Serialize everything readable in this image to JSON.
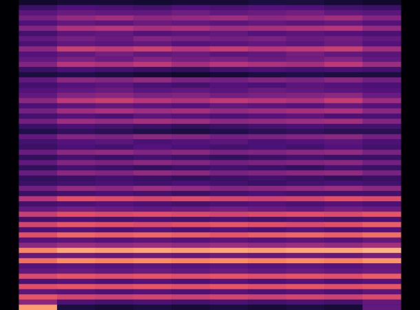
{
  "chart_data": {
    "type": "heatmap",
    "xlim": [
      0,
      10
    ],
    "ylim": [
      0,
      60
    ],
    "zlim": [
      0,
      100
    ],
    "tick_labels": false,
    "grid": false,
    "cells": [
      [
        8,
        10,
        10,
        9,
        10,
        10,
        12,
        12,
        10,
        8
      ],
      [
        20,
        25,
        24,
        22,
        25,
        24,
        26,
        25,
        22,
        20
      ],
      [
        28,
        32,
        30,
        30,
        33,
        30,
        32,
        34,
        30,
        28
      ],
      [
        35,
        42,
        45,
        40,
        42,
        44,
        40,
        42,
        45,
        38
      ],
      [
        25,
        30,
        28,
        32,
        30,
        28,
        30,
        28,
        30,
        26
      ],
      [
        38,
        48,
        50,
        46,
        48,
        44,
        46,
        48,
        50,
        42
      ],
      [
        22,
        28,
        30,
        26,
        28,
        30,
        26,
        28,
        26,
        24
      ],
      [
        30,
        35,
        32,
        38,
        36,
        34,
        36,
        32,
        34,
        30
      ],
      [
        24,
        30,
        28,
        30,
        26,
        28,
        30,
        28,
        32,
        26
      ],
      [
        40,
        55,
        52,
        56,
        50,
        54,
        50,
        52,
        55,
        45
      ],
      [
        26,
        30,
        34,
        30,
        32,
        28,
        30,
        34,
        30,
        28
      ],
      [
        30,
        36,
        32,
        38,
        34,
        36,
        32,
        34,
        38,
        30
      ],
      [
        38,
        50,
        48,
        52,
        46,
        50,
        48,
        46,
        52,
        44
      ],
      [
        20,
        24,
        22,
        20,
        18,
        22,
        24,
        22,
        24,
        22
      ],
      [
        12,
        14,
        12,
        10,
        8,
        10,
        12,
        14,
        12,
        12
      ],
      [
        30,
        40,
        38,
        42,
        36,
        34,
        38,
        36,
        40,
        34
      ],
      [
        22,
        26,
        28,
        24,
        22,
        26,
        24,
        28,
        26,
        24
      ],
      [
        26,
        30,
        32,
        28,
        30,
        28,
        32,
        30,
        28,
        26
      ],
      [
        30,
        38,
        40,
        36,
        38,
        34,
        36,
        38,
        40,
        32
      ],
      [
        40,
        52,
        55,
        50,
        48,
        52,
        50,
        48,
        54,
        44
      ],
      [
        24,
        28,
        30,
        28,
        26,
        30,
        28,
        26,
        30,
        26
      ],
      [
        35,
        45,
        48,
        44,
        46,
        42,
        44,
        46,
        48,
        40
      ],
      [
        22,
        26,
        24,
        28,
        26,
        24,
        26,
        28,
        24,
        24
      ],
      [
        34,
        44,
        42,
        46,
        44,
        40,
        42,
        44,
        46,
        38
      ],
      [
        20,
        24,
        22,
        20,
        18,
        20,
        22,
        24,
        22,
        22
      ],
      [
        14,
        18,
        16,
        14,
        12,
        14,
        16,
        18,
        16,
        16
      ],
      [
        30,
        38,
        36,
        40,
        38,
        34,
        36,
        38,
        40,
        34
      ],
      [
        22,
        26,
        28,
        24,
        26,
        28,
        24,
        26,
        28,
        24
      ],
      [
        20,
        24,
        22,
        26,
        24,
        22,
        24,
        22,
        26,
        22
      ],
      [
        32,
        40,
        42,
        38,
        40,
        36,
        38,
        40,
        42,
        36
      ],
      [
        18,
        22,
        20,
        22,
        20,
        18,
        20,
        22,
        20,
        20
      ],
      [
        30,
        38,
        36,
        40,
        38,
        34,
        36,
        38,
        40,
        34
      ],
      [
        18,
        22,
        20,
        18,
        20,
        22,
        20,
        18,
        22,
        20
      ],
      [
        32,
        40,
        38,
        42,
        40,
        36,
        38,
        40,
        42,
        36
      ],
      [
        18,
        20,
        22,
        20,
        18,
        20,
        22,
        20,
        18,
        20
      ],
      [
        20,
        22,
        24,
        22,
        24,
        22,
        20,
        22,
        24,
        22
      ],
      [
        34,
        42,
        40,
        44,
        42,
        38,
        40,
        42,
        44,
        40
      ],
      [
        20,
        22,
        24,
        22,
        20,
        22,
        24,
        22,
        22,
        22
      ],
      [
        50,
        62,
        60,
        58,
        60,
        58,
        56,
        58,
        62,
        60
      ],
      [
        22,
        24,
        26,
        24,
        22,
        24,
        26,
        24,
        26,
        24
      ],
      [
        30,
        34,
        32,
        30,
        32,
        34,
        32,
        30,
        34,
        32
      ],
      [
        55,
        62,
        60,
        62,
        60,
        58,
        60,
        62,
        60,
        64
      ],
      [
        22,
        24,
        22,
        24,
        22,
        24,
        22,
        24,
        22,
        24
      ],
      [
        58,
        64,
        62,
        60,
        62,
        64,
        62,
        60,
        62,
        66
      ],
      [
        24,
        26,
        24,
        26,
        24,
        26,
        24,
        26,
        24,
        26
      ],
      [
        62,
        68,
        66,
        68,
        66,
        64,
        66,
        68,
        66,
        70
      ],
      [
        26,
        28,
        26,
        28,
        26,
        28,
        26,
        28,
        26,
        30
      ],
      [
        40,
        44,
        42,
        44,
        42,
        44,
        42,
        44,
        42,
        46
      ],
      [
        75,
        82,
        80,
        82,
        80,
        82,
        80,
        82,
        82,
        85
      ],
      [
        30,
        32,
        30,
        32,
        30,
        32,
        30,
        32,
        30,
        34
      ],
      [
        70,
        76,
        74,
        76,
        74,
        76,
        74,
        76,
        74,
        78
      ],
      [
        26,
        28,
        26,
        28,
        26,
        28,
        26,
        28,
        26,
        30
      ],
      [
        30,
        32,
        30,
        32,
        30,
        32,
        30,
        32,
        30,
        32
      ],
      [
        60,
        64,
        62,
        64,
        62,
        64,
        62,
        64,
        62,
        66
      ],
      [
        24,
        26,
        24,
        26,
        24,
        26,
        24,
        26,
        24,
        26
      ],
      [
        62,
        64,
        62,
        64,
        62,
        64,
        62,
        64,
        62,
        64
      ],
      [
        28,
        26,
        24,
        26,
        24,
        26,
        24,
        26,
        24,
        28
      ],
      [
        64,
        58,
        56,
        58,
        56,
        58,
        56,
        58,
        56,
        60
      ],
      [
        40,
        24,
        22,
        24,
        22,
        24,
        22,
        24,
        22,
        30
      ],
      [
        80,
        12,
        10,
        12,
        10,
        12,
        10,
        12,
        10,
        30
      ]
    ]
  }
}
